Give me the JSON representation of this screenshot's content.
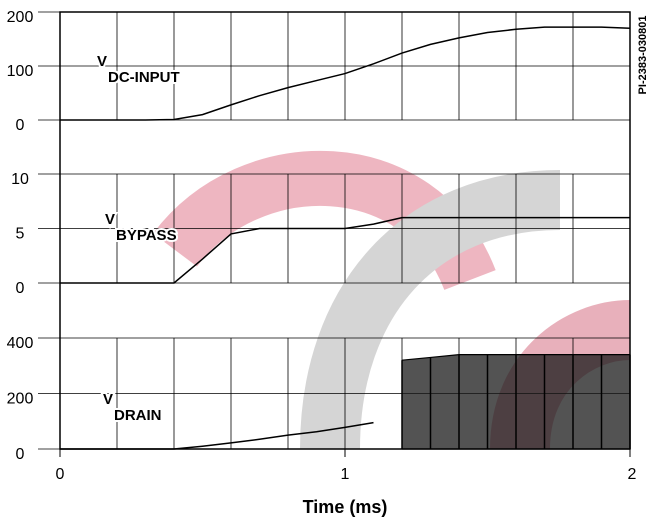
{
  "code": "PI-2383-030801",
  "chart_data": [
    {
      "type": "line",
      "label": {
        "main": "V",
        "sub": "DC-INPUT"
      },
      "xlim": [
        0,
        2
      ],
      "x": [
        0,
        0.1,
        0.2,
        0.3,
        0.4,
        0.5,
        0.6,
        0.7,
        0.8,
        0.9,
        1.0,
        1.1,
        1.2,
        1.3,
        1.4,
        1.5,
        1.6,
        1.7,
        1.8,
        1.9,
        2.0
      ],
      "series": [
        {
          "color": "#000000",
          "values": [
            0,
            0,
            0,
            0,
            1,
            10,
            28,
            45,
            60,
            73,
            86,
            104,
            124,
            140,
            152,
            162,
            168,
            172,
            172,
            172,
            170
          ]
        }
      ],
      "ylim": [
        0,
        200
      ],
      "yticks": [
        0,
        100,
        200
      ],
      "xgrid": [
        0,
        0.2,
        0.4,
        0.6,
        0.8,
        1.0,
        1.2,
        1.4,
        1.6,
        1.8,
        2.0
      ],
      "grid": true
    },
    {
      "type": "line",
      "label": {
        "main": "V",
        "sub": "BYPASS"
      },
      "xlim": [
        0,
        2
      ],
      "x": [
        0,
        0.1,
        0.2,
        0.3,
        0.4,
        0.5,
        0.6,
        0.7,
        0.8,
        0.9,
        1.0,
        1.1,
        1.2,
        1.3,
        1.4,
        1.5,
        1.6,
        1.7,
        1.8,
        1.9,
        2.0
      ],
      "series": [
        {
          "color": "#000000",
          "values": [
            0,
            0,
            0,
            0,
            0,
            2.2,
            4.5,
            5,
            5,
            5,
            5,
            5.4,
            6,
            6,
            6,
            6,
            6,
            6,
            6,
            6,
            6
          ]
        }
      ],
      "ylim": [
        0,
        10
      ],
      "yticks": [
        0,
        5,
        10
      ],
      "xgrid": [
        0,
        0.2,
        0.4,
        0.6,
        0.8,
        1.0,
        1.2,
        1.4,
        1.6,
        1.8,
        2.0
      ],
      "grid": true
    },
    {
      "type": "line",
      "label": {
        "main": "V",
        "sub": "DRAIN"
      },
      "xlim": [
        0,
        2
      ],
      "x": [
        0,
        0.1,
        0.2,
        0.3,
        0.4,
        0.5,
        0.6,
        0.7,
        0.8,
        0.9,
        1.0,
        1.1,
        1.2,
        1.3,
        1.4,
        1.5,
        1.6,
        1.7,
        1.8,
        1.9,
        2.0
      ],
      "series": [
        {
          "color": "#000000",
          "values": [
            0,
            0,
            0,
            0,
            0,
            10,
            22,
            35,
            50,
            62,
            78,
            95,
            null,
            null,
            null,
            null,
            null,
            null,
            null,
            null,
            null
          ]
        },
        {
          "color": "#000000",
          "values": [
            null,
            null,
            null,
            null,
            null,
            null,
            null,
            null,
            null,
            null,
            null,
            null,
            320,
            330,
            340,
            340,
            340,
            340,
            340,
            340,
            340
          ]
        },
        {
          "color": "#000000",
          "values": [
            null,
            null,
            null,
            null,
            null,
            null,
            null,
            null,
            null,
            null,
            null,
            null,
            0,
            0,
            0,
            0,
            0,
            0,
            0,
            0,
            0
          ]
        }
      ],
      "ylim": [
        0,
        400
      ],
      "yticks": [
        0,
        200,
        400
      ],
      "xgrid": [
        0,
        0.2,
        0.4,
        0.6,
        0.8,
        1.0,
        1.2,
        1.4,
        1.6,
        1.8,
        2.0
      ],
      "grid": true,
      "xticks": [
        0,
        1,
        2
      ],
      "xlabel": "Time (ms)"
    }
  ]
}
